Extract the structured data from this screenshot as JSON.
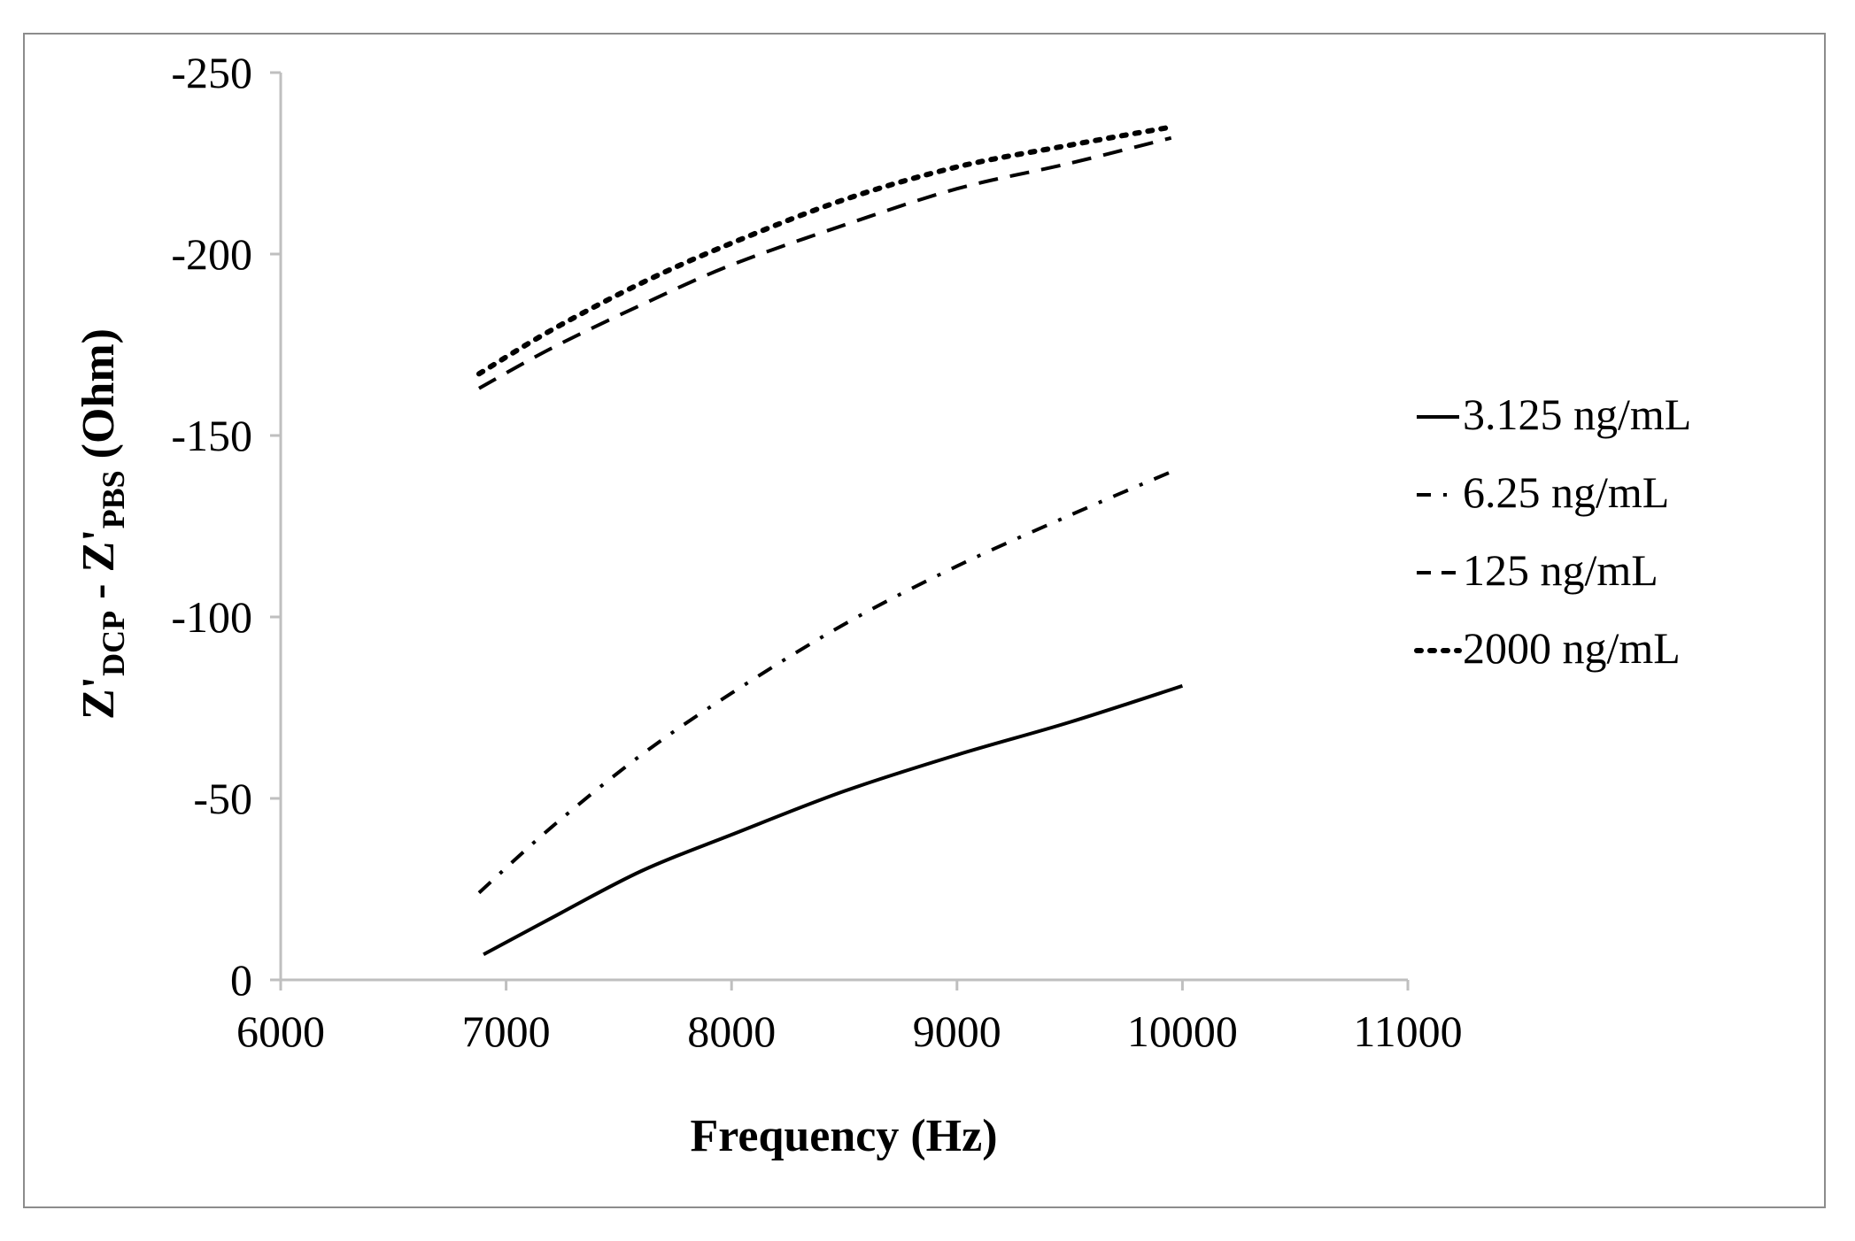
{
  "chart_data": {
    "type": "line",
    "title": "",
    "xlabel": "Frequency (Hz)",
    "ylabel": {
      "part1": "Z'",
      "sub1": "DCP",
      "part2": " - Z'",
      "sub2": "PBS",
      "part3": " (Ohm)"
    },
    "xlim": [
      6000,
      11000
    ],
    "ylim": [
      0,
      -250
    ],
    "x_ticks": [
      6000,
      7000,
      8000,
      9000,
      10000,
      11000
    ],
    "y_ticks": [
      0,
      -50,
      -100,
      -150,
      -200,
      -250
    ],
    "x_tick_labels": [
      "6000",
      "7000",
      "8000",
      "9000",
      "10000",
      "11000"
    ],
    "y_tick_labels": [
      "0",
      "-50",
      "-100",
      "-150",
      "-200",
      "-250"
    ],
    "grid": false,
    "legend_position": "right",
    "series": [
      {
        "name": "3.125 ng/mL",
        "style": "solid",
        "x": [
          6900,
          7200,
          7600,
          8000,
          8500,
          9000,
          9500,
          10000
        ],
        "y": [
          -7,
          -17,
          -30,
          -40,
          -52,
          -62,
          -71,
          -81
        ]
      },
      {
        "name": "6.25 ng/mL",
        "style": "dashdot",
        "x": [
          6880,
          7200,
          7600,
          8000,
          8500,
          9000,
          9500,
          9950
        ],
        "y": [
          -24,
          -42,
          -62,
          -79,
          -98,
          -114,
          -128,
          -140
        ]
      },
      {
        "name": "125 ng/mL",
        "style": "dashed",
        "x": [
          6880,
          7200,
          7600,
          8000,
          8500,
          9000,
          9500,
          9950
        ],
        "y": [
          -163,
          -174,
          -186,
          -197,
          -208,
          -218,
          -225,
          -232
        ]
      },
      {
        "name": "2000 ng/mL",
        "style": "dotted",
        "x": [
          6880,
          7200,
          7600,
          8000,
          8500,
          9000,
          9500,
          9950
        ],
        "y": [
          -167,
          -179,
          -192,
          -203,
          -215,
          -224,
          -230,
          -235
        ]
      }
    ]
  }
}
